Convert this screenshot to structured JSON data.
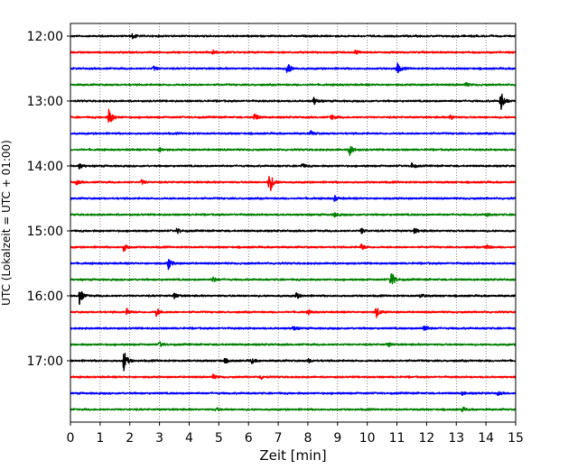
{
  "chart_data": {
    "type": "line",
    "title": "",
    "xlabel": "Zeit  [min]",
    "ylabel": "UTC (Lokalzeit = UTC + 01:00)",
    "xlim": [
      0,
      15
    ],
    "xticks": [
      0,
      1,
      2,
      3,
      4,
      5,
      6,
      7,
      8,
      9,
      10,
      11,
      12,
      13,
      14,
      15
    ],
    "grid": "vertical-dotted",
    "trace_interval_min": 15,
    "start_time": "12:00",
    "ytick_labels": [
      "12:00",
      "13:00",
      "14:00",
      "15:00",
      "16:00",
      "17:00"
    ],
    "color_cycle": [
      "#000000",
      "#ff0000",
      "#0000ff",
      "#008000"
    ],
    "traces": [
      {
        "time": "12:00",
        "events": [
          [
            2.1,
            0.25
          ]
        ]
      },
      {
        "time": "12:15",
        "events": [
          [
            4.8,
            0.2
          ],
          [
            9.6,
            0.2
          ]
        ]
      },
      {
        "time": "12:30",
        "events": [
          [
            7.3,
            0.7
          ],
          [
            11.0,
            0.55
          ],
          [
            2.8,
            0.2
          ]
        ]
      },
      {
        "time": "12:45",
        "events": [
          [
            13.3,
            0.2
          ]
        ]
      },
      {
        "time": "13:00",
        "events": [
          [
            14.5,
            1.0
          ],
          [
            8.2,
            0.35
          ]
        ]
      },
      {
        "time": "13:15",
        "events": [
          [
            1.3,
            0.9
          ],
          [
            6.2,
            0.35
          ],
          [
            8.8,
            0.25
          ],
          [
            12.8,
            0.25
          ]
        ]
      },
      {
        "time": "13:30",
        "events": [
          [
            8.1,
            0.2
          ]
        ]
      },
      {
        "time": "13:45",
        "events": [
          [
            9.4,
            0.55
          ],
          [
            3.0,
            0.2
          ]
        ]
      },
      {
        "time": "14:00",
        "events": [
          [
            0.3,
            0.25
          ],
          [
            11.5,
            0.25
          ],
          [
            7.8,
            0.2
          ]
        ]
      },
      {
        "time": "14:15",
        "events": [
          [
            6.7,
            1.2
          ],
          [
            0.2,
            0.2
          ],
          [
            2.4,
            0.2
          ]
        ]
      },
      {
        "time": "14:30",
        "events": [
          [
            8.9,
            0.25
          ]
        ]
      },
      {
        "time": "14:45",
        "events": [
          [
            14.0,
            0.2
          ],
          [
            8.9,
            0.2
          ]
        ]
      },
      {
        "time": "15:00",
        "events": [
          [
            9.8,
            0.25
          ],
          [
            3.6,
            0.25
          ],
          [
            11.6,
            0.25
          ]
        ]
      },
      {
        "time": "15:15",
        "events": [
          [
            1.8,
            0.4
          ],
          [
            9.8,
            0.3
          ],
          [
            14.0,
            0.3
          ]
        ]
      },
      {
        "time": "15:30",
        "events": [
          [
            3.3,
            0.55
          ]
        ]
      },
      {
        "time": "15:45",
        "events": [
          [
            10.8,
            0.9
          ],
          [
            4.8,
            0.25
          ]
        ]
      },
      {
        "time": "16:00",
        "events": [
          [
            0.3,
            0.8
          ],
          [
            3.5,
            0.3
          ],
          [
            7.6,
            0.3
          ],
          [
            11.8,
            0.2
          ]
        ]
      },
      {
        "time": "16:15",
        "events": [
          [
            10.3,
            0.55
          ],
          [
            2.9,
            0.4
          ],
          [
            1.9,
            0.3
          ],
          [
            8.0,
            0.2
          ]
        ]
      },
      {
        "time": "16:30",
        "events": [
          [
            11.9,
            0.4
          ],
          [
            7.5,
            0.2
          ]
        ]
      },
      {
        "time": "16:45",
        "events": [
          [
            3.0,
            0.25
          ],
          [
            10.7,
            0.2
          ]
        ]
      },
      {
        "time": "17:00",
        "events": [
          [
            1.8,
            1.0
          ],
          [
            6.1,
            0.25
          ],
          [
            5.2,
            0.2
          ],
          [
            8.0,
            0.2
          ]
        ]
      },
      {
        "time": "17:15",
        "events": [
          [
            6.4,
            0.2
          ],
          [
            4.8,
            0.2
          ]
        ]
      },
      {
        "time": "17:30",
        "events": [
          [
            13.2,
            0.15
          ],
          [
            14.4,
            0.15
          ]
        ]
      },
      {
        "time": "17:45",
        "events": [
          [
            13.2,
            0.2
          ],
          [
            4.9,
            0.15
          ]
        ]
      }
    ]
  }
}
